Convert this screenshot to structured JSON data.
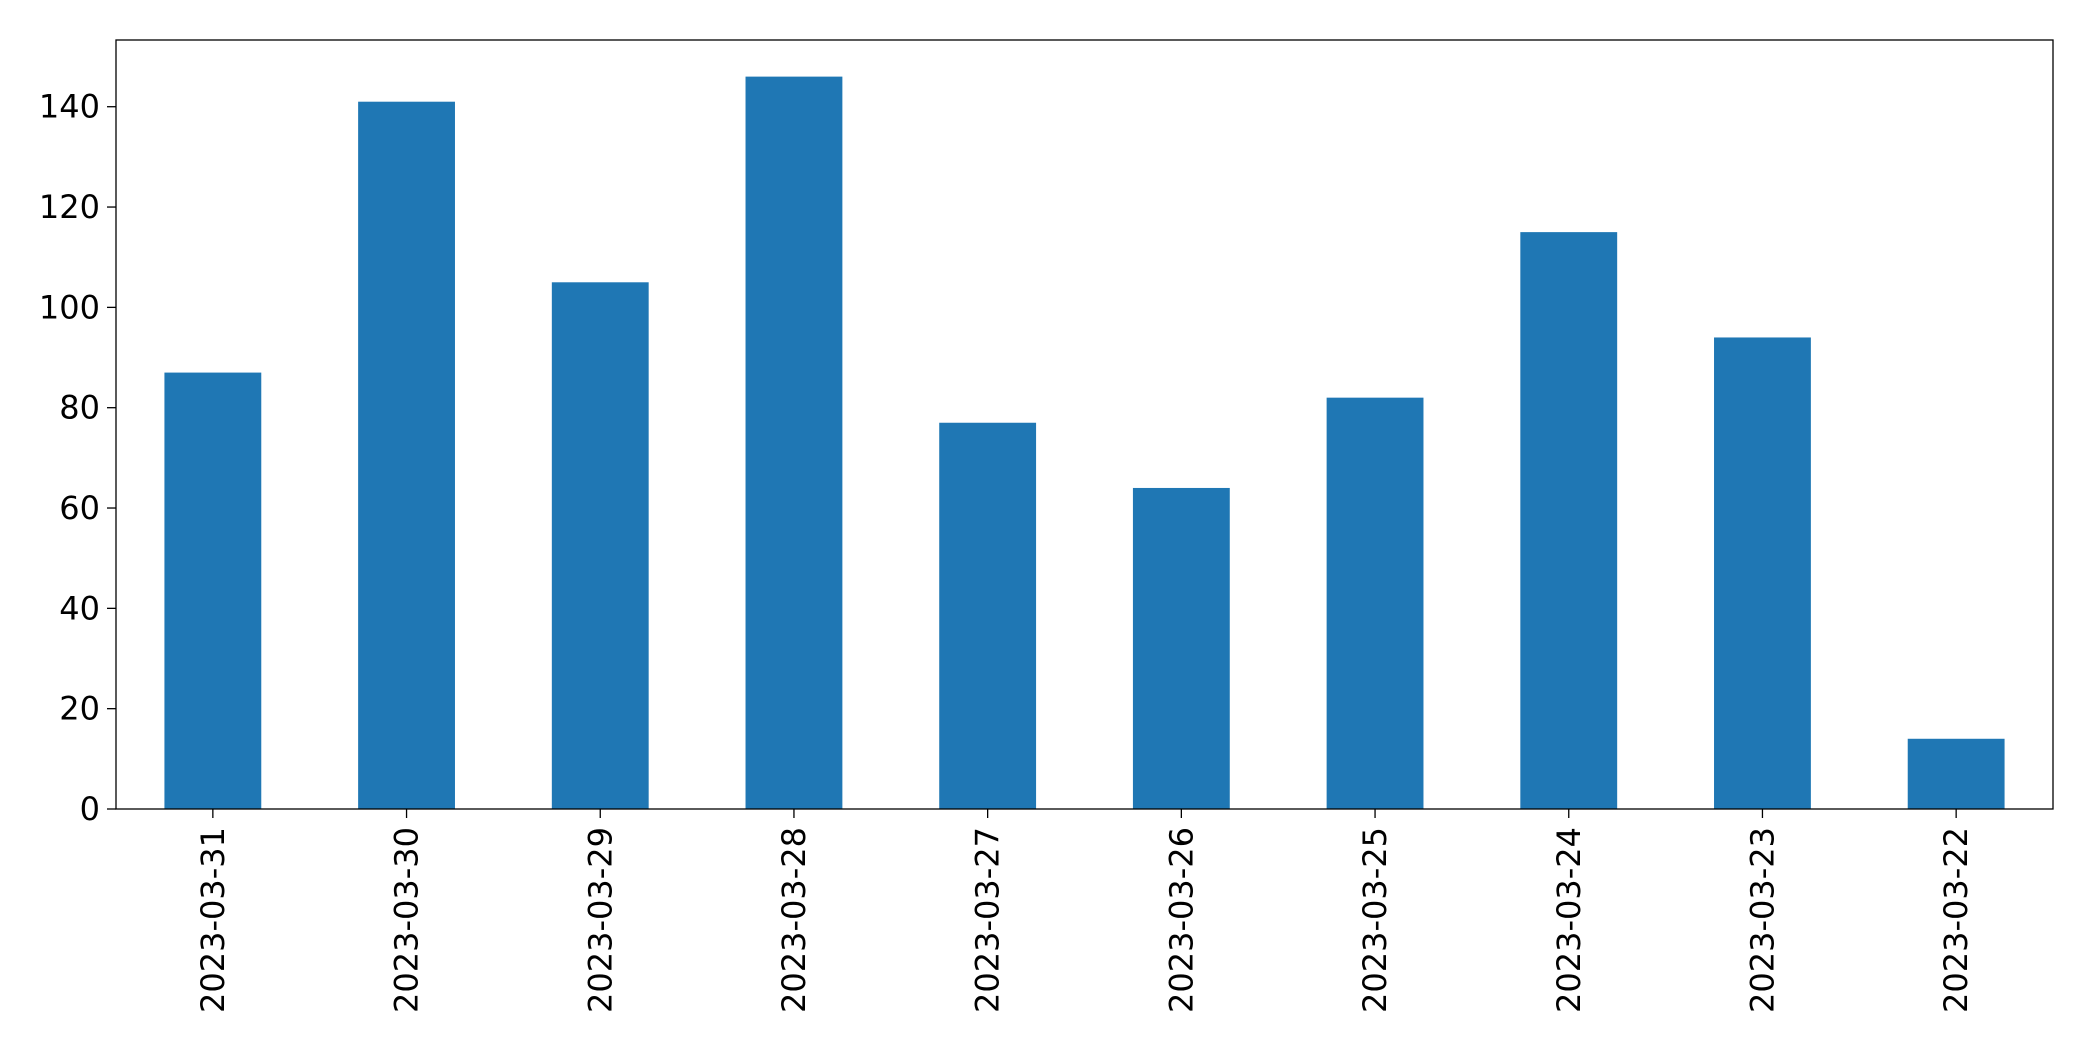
{
  "chart_data": {
    "type": "bar",
    "categories": [
      "2023-03-31",
      "2023-03-30",
      "2023-03-29",
      "2023-03-28",
      "2023-03-27",
      "2023-03-26",
      "2023-03-25",
      "2023-03-24",
      "2023-03-23",
      "2023-03-22"
    ],
    "values": [
      87,
      141,
      105,
      146,
      77,
      64,
      82,
      115,
      94,
      14
    ],
    "color": "#1f77b4",
    "ylim": [
      0,
      153.3
    ],
    "yticks": [
      0,
      20,
      40,
      60,
      80,
      100,
      120,
      140
    ],
    "grid": false
  }
}
